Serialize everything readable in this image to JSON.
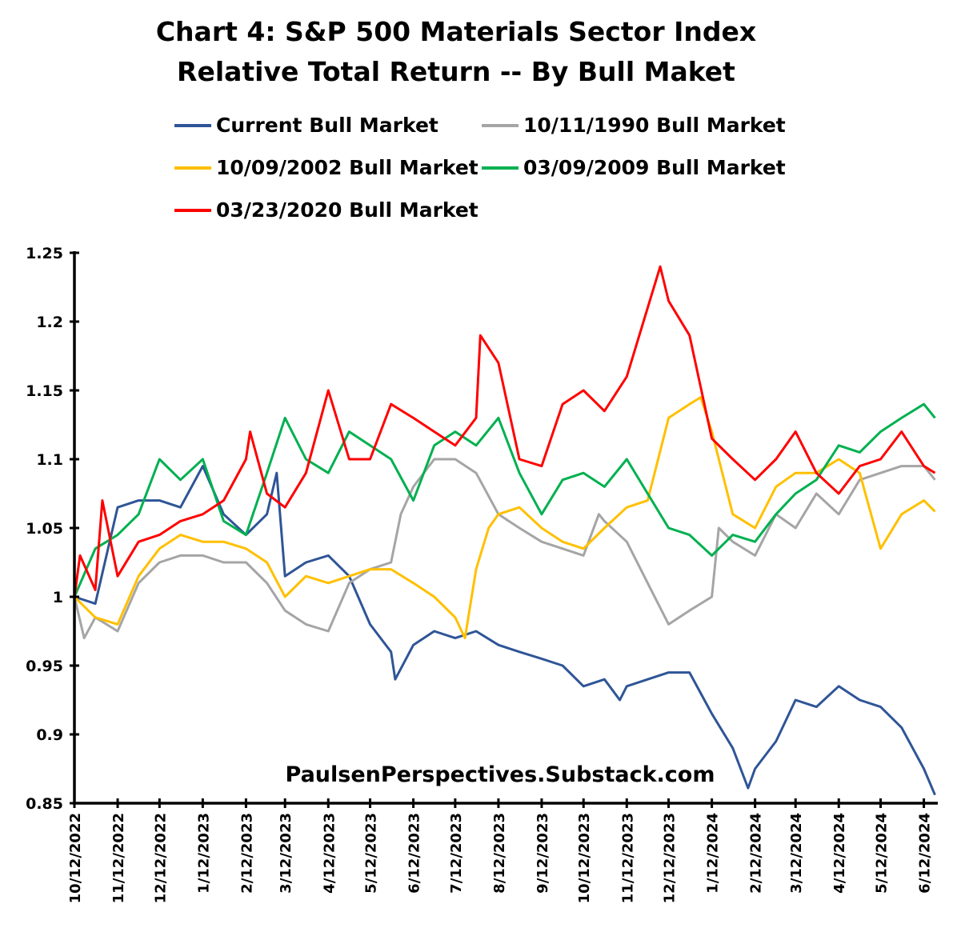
{
  "chart_data": {
    "type": "line",
    "title": "Chart 4:  S&P 500 Materials Sector Index",
    "subtitle": "Relative Total Return -- By Bull Maket",
    "watermark": "PaulsenPerspectives.Substack.com",
    "xlabel": "",
    "ylabel": "",
    "xlim": [
      "2022-10-12",
      "2024-06-22"
    ],
    "ylim": [
      0.85,
      1.25
    ],
    "y_ticks": [
      "1.25",
      "1.2",
      "1.15",
      "1.1",
      "1.05",
      "1",
      "0.95",
      "0.9",
      "0.85"
    ],
    "y_tick_values": [
      1.25,
      1.2,
      1.15,
      1.1,
      1.05,
      1.0,
      0.95,
      0.9,
      0.85
    ],
    "x_ticks": [
      "10/12/2022",
      "11/12/2022",
      "12/12/2022",
      "1/12/2023",
      "2/12/2023",
      "3/12/2023",
      "4/12/2023",
      "5/12/2023",
      "6/12/2023",
      "7/12/2023",
      "8/12/2023",
      "9/12/2023",
      "10/12/2023",
      "11/12/2023",
      "12/12/2023",
      "1/12/2024",
      "2/12/2024",
      "3/12/2024",
      "4/12/2024",
      "5/12/2024",
      "6/12/2024"
    ],
    "grid": false,
    "legend_position": "top",
    "series": [
      {
        "name": "Current Bull Market",
        "color": "#2F5597",
        "points": [
          [
            "2022-10-12",
            1.0
          ],
          [
            "2022-10-27",
            0.995
          ],
          [
            "2022-11-12",
            1.065
          ],
          [
            "2022-11-27",
            1.07
          ],
          [
            "2022-12-12",
            1.07
          ],
          [
            "2022-12-27",
            1.065
          ],
          [
            "2023-01-12",
            1.095
          ],
          [
            "2023-01-27",
            1.06
          ],
          [
            "2023-02-12",
            1.045
          ],
          [
            "2023-02-27",
            1.06
          ],
          [
            "2023-03-06",
            1.09
          ],
          [
            "2023-03-12",
            1.015
          ],
          [
            "2023-03-27",
            1.025
          ],
          [
            "2023-04-12",
            1.03
          ],
          [
            "2023-04-27",
            1.015
          ],
          [
            "2023-05-12",
            0.98
          ],
          [
            "2023-05-27",
            0.96
          ],
          [
            "2023-05-30",
            0.94
          ],
          [
            "2023-06-12",
            0.965
          ],
          [
            "2023-06-27",
            0.975
          ],
          [
            "2023-07-12",
            0.97
          ],
          [
            "2023-07-27",
            0.975
          ],
          [
            "2023-08-12",
            0.965
          ],
          [
            "2023-08-27",
            0.96
          ],
          [
            "2023-09-12",
            0.955
          ],
          [
            "2023-09-27",
            0.95
          ],
          [
            "2023-10-12",
            0.935
          ],
          [
            "2023-10-27",
            0.94
          ],
          [
            "2023-11-07",
            0.925
          ],
          [
            "2023-11-12",
            0.935
          ],
          [
            "2023-11-27",
            0.94
          ],
          [
            "2023-12-12",
            0.945
          ],
          [
            "2023-12-27",
            0.945
          ],
          [
            "2024-01-12",
            0.915
          ],
          [
            "2024-01-27",
            0.89
          ],
          [
            "2024-02-07",
            0.861
          ],
          [
            "2024-02-12",
            0.875
          ],
          [
            "2024-02-27",
            0.895
          ],
          [
            "2024-03-12",
            0.925
          ],
          [
            "2024-03-27",
            0.92
          ],
          [
            "2024-04-12",
            0.935
          ],
          [
            "2024-04-27",
            0.925
          ],
          [
            "2024-05-12",
            0.92
          ],
          [
            "2024-05-27",
            0.905
          ],
          [
            "2024-06-12",
            0.875
          ],
          [
            "2024-06-20",
            0.856
          ]
        ]
      },
      {
        "name": "10/11/1990 Bull Market",
        "color": "#A5A5A5",
        "points": [
          [
            "2022-10-12",
            1.0
          ],
          [
            "2022-10-19",
            0.97
          ],
          [
            "2022-10-27",
            0.985
          ],
          [
            "2022-11-12",
            0.975
          ],
          [
            "2022-11-27",
            1.01
          ],
          [
            "2022-12-12",
            1.025
          ],
          [
            "2022-12-27",
            1.03
          ],
          [
            "2023-01-12",
            1.03
          ],
          [
            "2023-01-27",
            1.025
          ],
          [
            "2023-02-12",
            1.025
          ],
          [
            "2023-02-27",
            1.01
          ],
          [
            "2023-03-12",
            0.99
          ],
          [
            "2023-03-27",
            0.98
          ],
          [
            "2023-04-12",
            0.975
          ],
          [
            "2023-04-27",
            1.01
          ],
          [
            "2023-05-12",
            1.02
          ],
          [
            "2023-05-27",
            1.025
          ],
          [
            "2023-06-03",
            1.06
          ],
          [
            "2023-06-12",
            1.08
          ],
          [
            "2023-06-27",
            1.1
          ],
          [
            "2023-07-12",
            1.1
          ],
          [
            "2023-07-27",
            1.09
          ],
          [
            "2023-08-12",
            1.06
          ],
          [
            "2023-08-27",
            1.05
          ],
          [
            "2023-09-12",
            1.04
          ],
          [
            "2023-09-27",
            1.035
          ],
          [
            "2023-10-12",
            1.03
          ],
          [
            "2023-10-23",
            1.06
          ],
          [
            "2023-10-27",
            1.055
          ],
          [
            "2023-11-12",
            1.04
          ],
          [
            "2023-11-27",
            1.01
          ],
          [
            "2023-12-12",
            0.98
          ],
          [
            "2023-12-27",
            0.99
          ],
          [
            "2024-01-12",
            1.0
          ],
          [
            "2024-01-17",
            1.05
          ],
          [
            "2024-01-27",
            1.04
          ],
          [
            "2024-02-12",
            1.03
          ],
          [
            "2024-02-27",
            1.06
          ],
          [
            "2024-03-12",
            1.05
          ],
          [
            "2024-03-27",
            1.075
          ],
          [
            "2024-04-12",
            1.06
          ],
          [
            "2024-04-27",
            1.085
          ],
          [
            "2024-05-12",
            1.09
          ],
          [
            "2024-05-27",
            1.095
          ],
          [
            "2024-06-12",
            1.095
          ],
          [
            "2024-06-20",
            1.085
          ]
        ]
      },
      {
        "name": "10/09/2002 Bull Market",
        "color": "#FFC000",
        "points": [
          [
            "2022-10-12",
            1.0
          ],
          [
            "2022-10-27",
            0.985
          ],
          [
            "2022-11-12",
            0.98
          ],
          [
            "2022-11-27",
            1.015
          ],
          [
            "2022-12-12",
            1.035
          ],
          [
            "2022-12-27",
            1.045
          ],
          [
            "2023-01-12",
            1.04
          ],
          [
            "2023-01-27",
            1.04
          ],
          [
            "2023-02-12",
            1.035
          ],
          [
            "2023-02-27",
            1.025
          ],
          [
            "2023-03-12",
            1.0
          ],
          [
            "2023-03-27",
            1.015
          ],
          [
            "2023-04-12",
            1.01
          ],
          [
            "2023-04-27",
            1.015
          ],
          [
            "2023-05-12",
            1.02
          ],
          [
            "2023-05-27",
            1.02
          ],
          [
            "2023-06-12",
            1.01
          ],
          [
            "2023-06-27",
            1.0
          ],
          [
            "2023-07-12",
            0.985
          ],
          [
            "2023-07-19",
            0.97
          ],
          [
            "2023-07-27",
            1.02
          ],
          [
            "2023-08-05",
            1.05
          ],
          [
            "2023-08-12",
            1.06
          ],
          [
            "2023-08-27",
            1.065
          ],
          [
            "2023-09-12",
            1.05
          ],
          [
            "2023-09-27",
            1.04
          ],
          [
            "2023-10-12",
            1.035
          ],
          [
            "2023-10-27",
            1.05
          ],
          [
            "2023-11-12",
            1.065
          ],
          [
            "2023-11-27",
            1.07
          ],
          [
            "2023-12-12",
            1.13
          ],
          [
            "2023-12-27",
            1.14
          ],
          [
            "2024-01-04",
            1.145
          ],
          [
            "2024-01-12",
            1.12
          ],
          [
            "2024-01-27",
            1.06
          ],
          [
            "2024-02-12",
            1.05
          ],
          [
            "2024-02-27",
            1.08
          ],
          [
            "2024-03-12",
            1.09
          ],
          [
            "2024-03-27",
            1.09
          ],
          [
            "2024-04-12",
            1.1
          ],
          [
            "2024-04-27",
            1.09
          ],
          [
            "2024-05-12",
            1.035
          ],
          [
            "2024-05-27",
            1.06
          ],
          [
            "2024-06-12",
            1.07
          ],
          [
            "2024-06-20",
            1.062
          ]
        ]
      },
      {
        "name": "03/09/2009 Bull Market",
        "color": "#00B050",
        "points": [
          [
            "2022-10-12",
            1.0
          ],
          [
            "2022-10-27",
            1.035
          ],
          [
            "2022-11-12",
            1.045
          ],
          [
            "2022-11-27",
            1.06
          ],
          [
            "2022-12-12",
            1.1
          ],
          [
            "2022-12-27",
            1.085
          ],
          [
            "2023-01-12",
            1.1
          ],
          [
            "2023-01-27",
            1.055
          ],
          [
            "2023-02-12",
            1.045
          ],
          [
            "2023-02-27",
            1.09
          ],
          [
            "2023-03-12",
            1.13
          ],
          [
            "2023-03-27",
            1.1
          ],
          [
            "2023-04-12",
            1.09
          ],
          [
            "2023-04-27",
            1.12
          ],
          [
            "2023-05-12",
            1.11
          ],
          [
            "2023-05-27",
            1.1
          ],
          [
            "2023-06-12",
            1.07
          ],
          [
            "2023-06-27",
            1.11
          ],
          [
            "2023-07-12",
            1.12
          ],
          [
            "2023-07-27",
            1.11
          ],
          [
            "2023-08-12",
            1.13
          ],
          [
            "2023-08-27",
            1.09
          ],
          [
            "2023-09-12",
            1.06
          ],
          [
            "2023-09-27",
            1.085
          ],
          [
            "2023-10-12",
            1.09
          ],
          [
            "2023-10-27",
            1.08
          ],
          [
            "2023-11-12",
            1.1
          ],
          [
            "2023-11-27",
            1.075
          ],
          [
            "2023-12-12",
            1.05
          ],
          [
            "2023-12-27",
            1.045
          ],
          [
            "2024-01-12",
            1.03
          ],
          [
            "2024-01-27",
            1.045
          ],
          [
            "2024-02-12",
            1.04
          ],
          [
            "2024-02-27",
            1.06
          ],
          [
            "2024-03-12",
            1.075
          ],
          [
            "2024-03-27",
            1.085
          ],
          [
            "2024-04-12",
            1.11
          ],
          [
            "2024-04-27",
            1.105
          ],
          [
            "2024-05-12",
            1.12
          ],
          [
            "2024-05-27",
            1.13
          ],
          [
            "2024-06-12",
            1.14
          ],
          [
            "2024-06-20",
            1.13
          ]
        ]
      },
      {
        "name": "03/23/2020 Bull Market",
        "color": "#FF0000",
        "points": [
          [
            "2022-10-12",
            1.0
          ],
          [
            "2022-10-16",
            1.03
          ],
          [
            "2022-10-27",
            1.005
          ],
          [
            "2022-11-01",
            1.07
          ],
          [
            "2022-11-12",
            1.015
          ],
          [
            "2022-11-27",
            1.04
          ],
          [
            "2022-12-12",
            1.045
          ],
          [
            "2022-12-27",
            1.055
          ],
          [
            "2023-01-12",
            1.06
          ],
          [
            "2023-01-27",
            1.07
          ],
          [
            "2023-02-12",
            1.1
          ],
          [
            "2023-02-15",
            1.12
          ],
          [
            "2023-02-27",
            1.075
          ],
          [
            "2023-03-12",
            1.065
          ],
          [
            "2023-03-27",
            1.09
          ],
          [
            "2023-04-12",
            1.15
          ],
          [
            "2023-04-27",
            1.1
          ],
          [
            "2023-05-12",
            1.1
          ],
          [
            "2023-05-27",
            1.14
          ],
          [
            "2023-06-12",
            1.13
          ],
          [
            "2023-06-27",
            1.12
          ],
          [
            "2023-07-12",
            1.11
          ],
          [
            "2023-07-27",
            1.13
          ],
          [
            "2023-07-30",
            1.19
          ],
          [
            "2023-08-12",
            1.17
          ],
          [
            "2023-08-27",
            1.1
          ],
          [
            "2023-09-12",
            1.095
          ],
          [
            "2023-09-27",
            1.14
          ],
          [
            "2023-10-12",
            1.15
          ],
          [
            "2023-10-27",
            1.135
          ],
          [
            "2023-11-12",
            1.16
          ],
          [
            "2023-11-27",
            1.21
          ],
          [
            "2023-12-06",
            1.24
          ],
          [
            "2023-12-12",
            1.215
          ],
          [
            "2023-12-27",
            1.19
          ],
          [
            "2024-01-12",
            1.115
          ],
          [
            "2024-01-27",
            1.1
          ],
          [
            "2024-02-12",
            1.085
          ],
          [
            "2024-02-27",
            1.1
          ],
          [
            "2024-03-12",
            1.12
          ],
          [
            "2024-03-27",
            1.09
          ],
          [
            "2024-04-12",
            1.075
          ],
          [
            "2024-04-27",
            1.095
          ],
          [
            "2024-05-12",
            1.1
          ],
          [
            "2024-05-27",
            1.12
          ],
          [
            "2024-06-12",
            1.095
          ],
          [
            "2024-06-20",
            1.09
          ]
        ]
      }
    ]
  }
}
